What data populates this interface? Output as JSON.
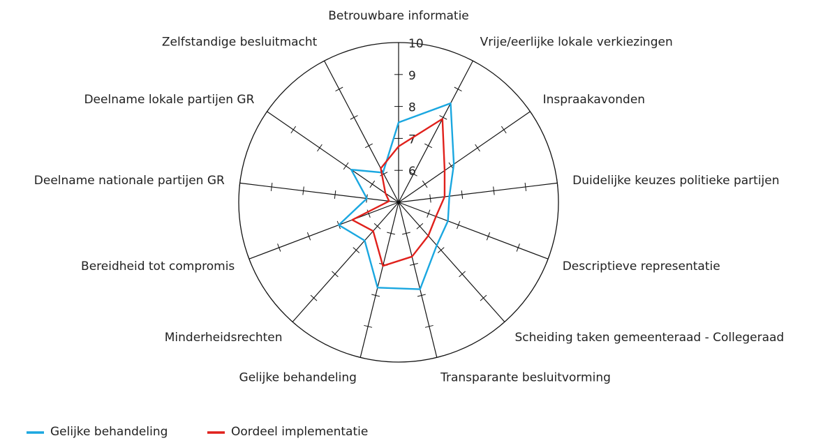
{
  "chart_data": {
    "type": "radar",
    "categories": [
      "Betrouwbare informatie",
      "Vrije/eerlijke lokale verkiezingen",
      "Inspraakavonden",
      "Duidelijke keuzes politieke partijen",
      "Descriptieve representatie",
      "Scheiding taken gemeenteraad - Collegeraad",
      "Transparante besluitvorming",
      "Gelijke behandeling",
      "Minderheidsrechten",
      "Bereidheid tot compromis",
      "Deelname nationale partijen GR",
      "Deelname lokale partijen GR",
      "Zelfstandige besluitmacht"
    ],
    "series": [
      {
        "name": "Gelijke behandeling",
        "color": "#1aa7e0",
        "values": [
          7.5,
          8.5,
          7.1,
          6.6,
          6.65,
          6.8,
          7.8,
          7.75,
          6.6,
          7.0,
          6.0,
          6.8,
          6.05
        ]
      },
      {
        "name": "Oordeel implementatie",
        "color": "#e0201b",
        "values": [
          6.75,
          7.95,
          6.75,
          6.45,
          6.25,
          6.4,
          6.75,
          7.05,
          6.2,
          6.55,
          5.3,
          5.5,
          6.2
        ]
      }
    ],
    "ylim": [
      5,
      10
    ],
    "yticks": [
      6,
      7,
      8,
      9,
      10
    ]
  }
}
